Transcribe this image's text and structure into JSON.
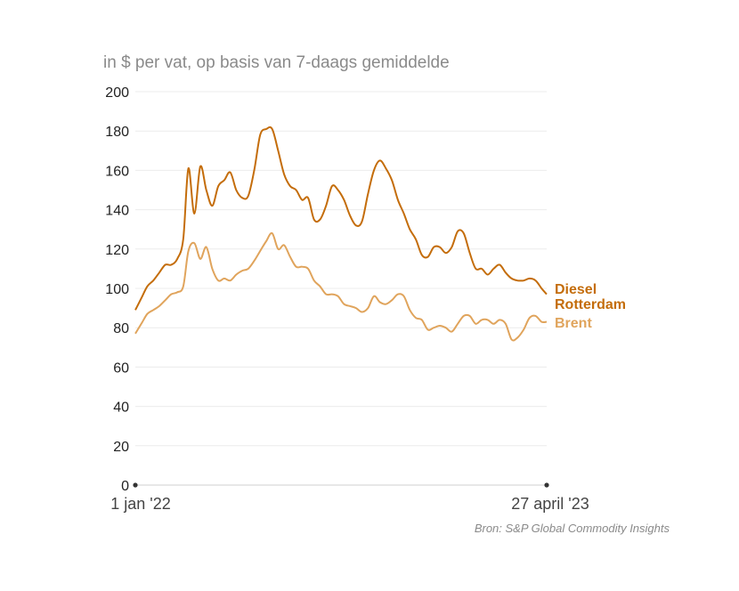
{
  "subtitle": "in $ per vat, op basis van 7-daags gemiddelde",
  "source": "Bron: S&P Global Commodity Insights",
  "chart_data": {
    "type": "line",
    "title": "",
    "xlabel": "",
    "ylabel": "",
    "x_tick_labels": [
      "1 jan '22",
      "27 april '23"
    ],
    "x_range": [
      "2022-01-01",
      "2023-04-27"
    ],
    "ylim": [
      0,
      200
    ],
    "yticks": [
      0,
      20,
      40,
      60,
      80,
      100,
      120,
      140,
      160,
      180,
      200
    ],
    "grid": true,
    "series": [
      {
        "name": "Diesel Rotterdam",
        "label_lines": [
          "Diesel",
          "Rotterdam"
        ],
        "color": "#c46d0b",
        "points": [
          [
            "2022-01-01",
            89
          ],
          [
            "2022-01-08",
            95
          ],
          [
            "2022-01-15",
            101
          ],
          [
            "2022-01-22",
            104
          ],
          [
            "2022-01-29",
            108
          ],
          [
            "2022-02-05",
            112
          ],
          [
            "2022-02-12",
            112
          ],
          [
            "2022-02-19",
            115
          ],
          [
            "2022-02-26",
            125
          ],
          [
            "2022-03-04",
            161
          ],
          [
            "2022-03-11",
            138
          ],
          [
            "2022-03-18",
            162
          ],
          [
            "2022-03-25",
            150
          ],
          [
            "2022-04-01",
            142
          ],
          [
            "2022-04-08",
            152
          ],
          [
            "2022-04-15",
            155
          ],
          [
            "2022-04-22",
            159
          ],
          [
            "2022-04-29",
            150
          ],
          [
            "2022-05-06",
            146
          ],
          [
            "2022-05-13",
            147
          ],
          [
            "2022-05-20",
            160
          ],
          [
            "2022-05-27",
            178
          ],
          [
            "2022-06-03",
            181
          ],
          [
            "2022-06-10",
            181
          ],
          [
            "2022-06-17",
            170
          ],
          [
            "2022-06-24",
            158
          ],
          [
            "2022-07-01",
            152
          ],
          [
            "2022-07-08",
            150
          ],
          [
            "2022-07-15",
            145
          ],
          [
            "2022-07-22",
            146
          ],
          [
            "2022-07-29",
            135
          ],
          [
            "2022-08-05",
            135
          ],
          [
            "2022-08-12",
            142
          ],
          [
            "2022-08-19",
            152
          ],
          [
            "2022-08-26",
            150
          ],
          [
            "2022-09-02",
            145
          ],
          [
            "2022-09-09",
            137
          ],
          [
            "2022-09-16",
            132
          ],
          [
            "2022-09-23",
            134
          ],
          [
            "2022-09-30",
            148
          ],
          [
            "2022-10-07",
            160
          ],
          [
            "2022-10-14",
            165
          ],
          [
            "2022-10-21",
            161
          ],
          [
            "2022-10-28",
            155
          ],
          [
            "2022-11-04",
            145
          ],
          [
            "2022-11-11",
            138
          ],
          [
            "2022-11-18",
            130
          ],
          [
            "2022-11-25",
            125
          ],
          [
            "2022-12-02",
            117
          ],
          [
            "2022-12-09",
            116
          ],
          [
            "2022-12-16",
            121
          ],
          [
            "2022-12-23",
            121
          ],
          [
            "2022-12-30",
            118
          ],
          [
            "2023-01-06",
            121
          ],
          [
            "2023-01-13",
            129
          ],
          [
            "2023-01-20",
            128
          ],
          [
            "2023-01-27",
            118
          ],
          [
            "2023-02-03",
            110
          ],
          [
            "2023-02-10",
            110
          ],
          [
            "2023-02-17",
            107
          ],
          [
            "2023-02-24",
            110
          ],
          [
            "2023-03-03",
            112
          ],
          [
            "2023-03-10",
            108
          ],
          [
            "2023-03-17",
            105
          ],
          [
            "2023-03-24",
            104
          ],
          [
            "2023-03-31",
            104
          ],
          [
            "2023-04-07",
            105
          ],
          [
            "2023-04-14",
            104
          ],
          [
            "2023-04-21",
            100
          ],
          [
            "2023-04-27",
            97
          ]
        ]
      },
      {
        "name": "Brent",
        "label_lines": [
          "Brent"
        ],
        "color": "#e0a45c",
        "points": [
          [
            "2022-01-01",
            77
          ],
          [
            "2022-01-08",
            82
          ],
          [
            "2022-01-15",
            87
          ],
          [
            "2022-01-22",
            89
          ],
          [
            "2022-01-29",
            91
          ],
          [
            "2022-02-05",
            94
          ],
          [
            "2022-02-12",
            97
          ],
          [
            "2022-02-19",
            98
          ],
          [
            "2022-02-26",
            101
          ],
          [
            "2022-03-04",
            119
          ],
          [
            "2022-03-11",
            123
          ],
          [
            "2022-03-18",
            115
          ],
          [
            "2022-03-25",
            121
          ],
          [
            "2022-04-01",
            110
          ],
          [
            "2022-04-08",
            104
          ],
          [
            "2022-04-15",
            105
          ],
          [
            "2022-04-22",
            104
          ],
          [
            "2022-04-29",
            107
          ],
          [
            "2022-05-06",
            109
          ],
          [
            "2022-05-13",
            110
          ],
          [
            "2022-05-20",
            114
          ],
          [
            "2022-05-27",
            119
          ],
          [
            "2022-06-03",
            124
          ],
          [
            "2022-06-10",
            128
          ],
          [
            "2022-06-17",
            120
          ],
          [
            "2022-06-24",
            122
          ],
          [
            "2022-07-01",
            116
          ],
          [
            "2022-07-08",
            111
          ],
          [
            "2022-07-15",
            111
          ],
          [
            "2022-07-22",
            110
          ],
          [
            "2022-07-29",
            104
          ],
          [
            "2022-08-05",
            101
          ],
          [
            "2022-08-12",
            97
          ],
          [
            "2022-08-19",
            97
          ],
          [
            "2022-08-26",
            96
          ],
          [
            "2022-09-02",
            92
          ],
          [
            "2022-09-09",
            91
          ],
          [
            "2022-09-16",
            90
          ],
          [
            "2022-09-23",
            88
          ],
          [
            "2022-09-30",
            90
          ],
          [
            "2022-10-07",
            96
          ],
          [
            "2022-10-14",
            93
          ],
          [
            "2022-10-21",
            92
          ],
          [
            "2022-10-28",
            94
          ],
          [
            "2022-11-04",
            97
          ],
          [
            "2022-11-11",
            96
          ],
          [
            "2022-11-18",
            89
          ],
          [
            "2022-11-25",
            85
          ],
          [
            "2022-12-02",
            84
          ],
          [
            "2022-12-09",
            79
          ],
          [
            "2022-12-16",
            80
          ],
          [
            "2022-12-23",
            81
          ],
          [
            "2022-12-30",
            80
          ],
          [
            "2023-01-06",
            78
          ],
          [
            "2023-01-13",
            82
          ],
          [
            "2023-01-20",
            86
          ],
          [
            "2023-01-27",
            86
          ],
          [
            "2023-02-03",
            82
          ],
          [
            "2023-02-10",
            84
          ],
          [
            "2023-02-17",
            84
          ],
          [
            "2023-02-24",
            82
          ],
          [
            "2023-03-03",
            84
          ],
          [
            "2023-03-10",
            82
          ],
          [
            "2023-03-17",
            74
          ],
          [
            "2023-03-24",
            75
          ],
          [
            "2023-03-31",
            79
          ],
          [
            "2023-04-07",
            85
          ],
          [
            "2023-04-14",
            86
          ],
          [
            "2023-04-21",
            83
          ],
          [
            "2023-04-27",
            83
          ]
        ]
      }
    ]
  }
}
